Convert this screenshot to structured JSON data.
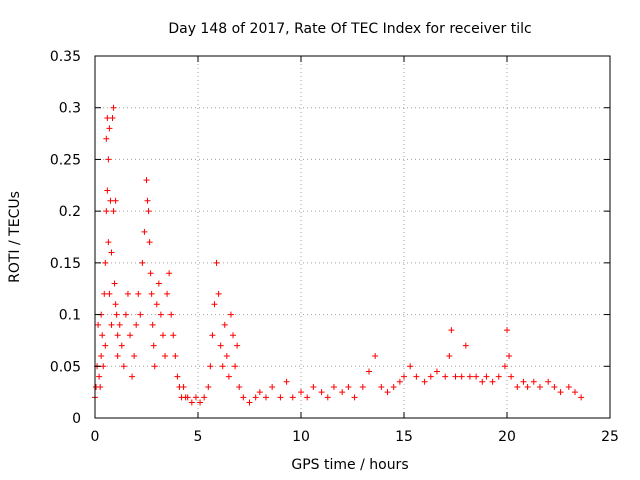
{
  "chart_data": {
    "type": "scatter",
    "title": "Day 148 of 2017, Rate Of TEC Index for receiver tilc",
    "xlabel": "GPS time / hours",
    "ylabel": "ROTI / TECUs",
    "xlim": [
      0,
      25
    ],
    "ylim": [
      0,
      0.35
    ],
    "x_ticks": [
      "0",
      "5",
      "10",
      "15",
      "20",
      "25"
    ],
    "y_ticks": [
      "0",
      "0.05",
      "0.1",
      "0.15",
      "0.2",
      "0.25",
      "0.3",
      "0.35"
    ],
    "grid": true,
    "marker": "+",
    "marker_color": "#ff0000",
    "series": [
      {
        "points": [
          [
            0.0,
            0.02
          ],
          [
            0.05,
            0.03
          ],
          [
            0.1,
            0.05
          ],
          [
            0.15,
            0.09
          ],
          [
            0.2,
            0.04
          ],
          [
            0.25,
            0.03
          ],
          [
            0.3,
            0.06
          ],
          [
            0.3,
            0.1
          ],
          [
            0.35,
            0.08
          ],
          [
            0.4,
            0.05
          ],
          [
            0.45,
            0.12
          ],
          [
            0.5,
            0.07
          ],
          [
            0.5,
            0.15
          ],
          [
            0.55,
            0.2
          ],
          [
            0.55,
            0.27
          ],
          [
            0.6,
            0.22
          ],
          [
            0.6,
            0.29
          ],
          [
            0.65,
            0.25
          ],
          [
            0.65,
            0.17
          ],
          [
            0.7,
            0.28
          ],
          [
            0.7,
            0.12
          ],
          [
            0.75,
            0.21
          ],
          [
            0.8,
            0.16
          ],
          [
            0.8,
            0.09
          ],
          [
            0.85,
            0.29
          ],
          [
            0.9,
            0.3
          ],
          [
            0.9,
            0.2
          ],
          [
            0.95,
            0.13
          ],
          [
            1.0,
            0.21
          ],
          [
            1.0,
            0.11
          ],
          [
            1.05,
            0.1
          ],
          [
            1.1,
            0.08
          ],
          [
            1.1,
            0.06
          ],
          [
            1.2,
            0.09
          ],
          [
            1.3,
            0.07
          ],
          [
            1.4,
            0.05
          ],
          [
            1.5,
            0.1
          ],
          [
            1.6,
            0.12
          ],
          [
            1.7,
            0.08
          ],
          [
            1.8,
            0.04
          ],
          [
            1.9,
            0.06
          ],
          [
            2.0,
            0.09
          ],
          [
            2.1,
            0.12
          ],
          [
            2.2,
            0.1
          ],
          [
            2.3,
            0.15
          ],
          [
            2.4,
            0.18
          ],
          [
            2.5,
            0.23
          ],
          [
            2.55,
            0.21
          ],
          [
            2.6,
            0.2
          ],
          [
            2.65,
            0.17
          ],
          [
            2.7,
            0.14
          ],
          [
            2.75,
            0.12
          ],
          [
            2.8,
            0.09
          ],
          [
            2.85,
            0.07
          ],
          [
            2.9,
            0.05
          ],
          [
            3.0,
            0.11
          ],
          [
            3.1,
            0.13
          ],
          [
            3.2,
            0.1
          ],
          [
            3.3,
            0.08
          ],
          [
            3.4,
            0.06
          ],
          [
            3.5,
            0.12
          ],
          [
            3.6,
            0.14
          ],
          [
            3.7,
            0.1
          ],
          [
            3.8,
            0.08
          ],
          [
            3.9,
            0.06
          ],
          [
            4.0,
            0.04
          ],
          [
            4.1,
            0.03
          ],
          [
            4.2,
            0.02
          ],
          [
            4.3,
            0.03
          ],
          [
            4.4,
            0.02
          ],
          [
            4.5,
            0.02
          ],
          [
            4.7,
            0.015
          ],
          [
            4.9,
            0.02
          ],
          [
            5.1,
            0.015
          ],
          [
            5.3,
            0.02
          ],
          [
            5.5,
            0.03
          ],
          [
            5.6,
            0.05
          ],
          [
            5.7,
            0.08
          ],
          [
            5.8,
            0.11
          ],
          [
            5.9,
            0.15
          ],
          [
            6.0,
            0.12
          ],
          [
            6.1,
            0.07
          ],
          [
            6.2,
            0.05
          ],
          [
            6.3,
            0.09
          ],
          [
            6.4,
            0.06
          ],
          [
            6.5,
            0.04
          ],
          [
            6.6,
            0.1
          ],
          [
            6.7,
            0.08
          ],
          [
            6.8,
            0.05
          ],
          [
            6.9,
            0.07
          ],
          [
            7.0,
            0.03
          ],
          [
            7.2,
            0.02
          ],
          [
            7.5,
            0.015
          ],
          [
            7.8,
            0.02
          ],
          [
            8.0,
            0.025
          ],
          [
            8.3,
            0.02
          ],
          [
            8.6,
            0.03
          ],
          [
            9.0,
            0.02
          ],
          [
            9.3,
            0.035
          ],
          [
            9.6,
            0.02
          ],
          [
            10.0,
            0.025
          ],
          [
            10.3,
            0.02
          ],
          [
            10.6,
            0.03
          ],
          [
            11.0,
            0.025
          ],
          [
            11.3,
            0.02
          ],
          [
            11.6,
            0.03
          ],
          [
            12.0,
            0.025
          ],
          [
            12.3,
            0.03
          ],
          [
            12.6,
            0.02
          ],
          [
            13.0,
            0.03
          ],
          [
            13.3,
            0.045
          ],
          [
            13.6,
            0.06
          ],
          [
            13.9,
            0.03
          ],
          [
            14.2,
            0.025
          ],
          [
            14.5,
            0.03
          ],
          [
            14.8,
            0.035
          ],
          [
            15.0,
            0.04
          ],
          [
            15.3,
            0.05
          ],
          [
            15.6,
            0.04
          ],
          [
            16.0,
            0.035
          ],
          [
            16.3,
            0.04
          ],
          [
            16.6,
            0.045
          ],
          [
            17.0,
            0.04
          ],
          [
            17.2,
            0.06
          ],
          [
            17.3,
            0.085
          ],
          [
            17.5,
            0.04
          ],
          [
            17.8,
            0.04
          ],
          [
            18.0,
            0.07
          ],
          [
            18.2,
            0.04
          ],
          [
            18.5,
            0.04
          ],
          [
            18.8,
            0.035
          ],
          [
            19.0,
            0.04
          ],
          [
            19.3,
            0.035
          ],
          [
            19.6,
            0.04
          ],
          [
            19.9,
            0.05
          ],
          [
            20.0,
            0.085
          ],
          [
            20.1,
            0.06
          ],
          [
            20.2,
            0.04
          ],
          [
            20.5,
            0.03
          ],
          [
            20.8,
            0.035
          ],
          [
            21.0,
            0.03
          ],
          [
            21.3,
            0.035
          ],
          [
            21.6,
            0.03
          ],
          [
            22.0,
            0.035
          ],
          [
            22.3,
            0.03
          ],
          [
            22.6,
            0.025
          ],
          [
            23.0,
            0.03
          ],
          [
            23.3,
            0.025
          ],
          [
            23.6,
            0.02
          ]
        ]
      }
    ]
  }
}
